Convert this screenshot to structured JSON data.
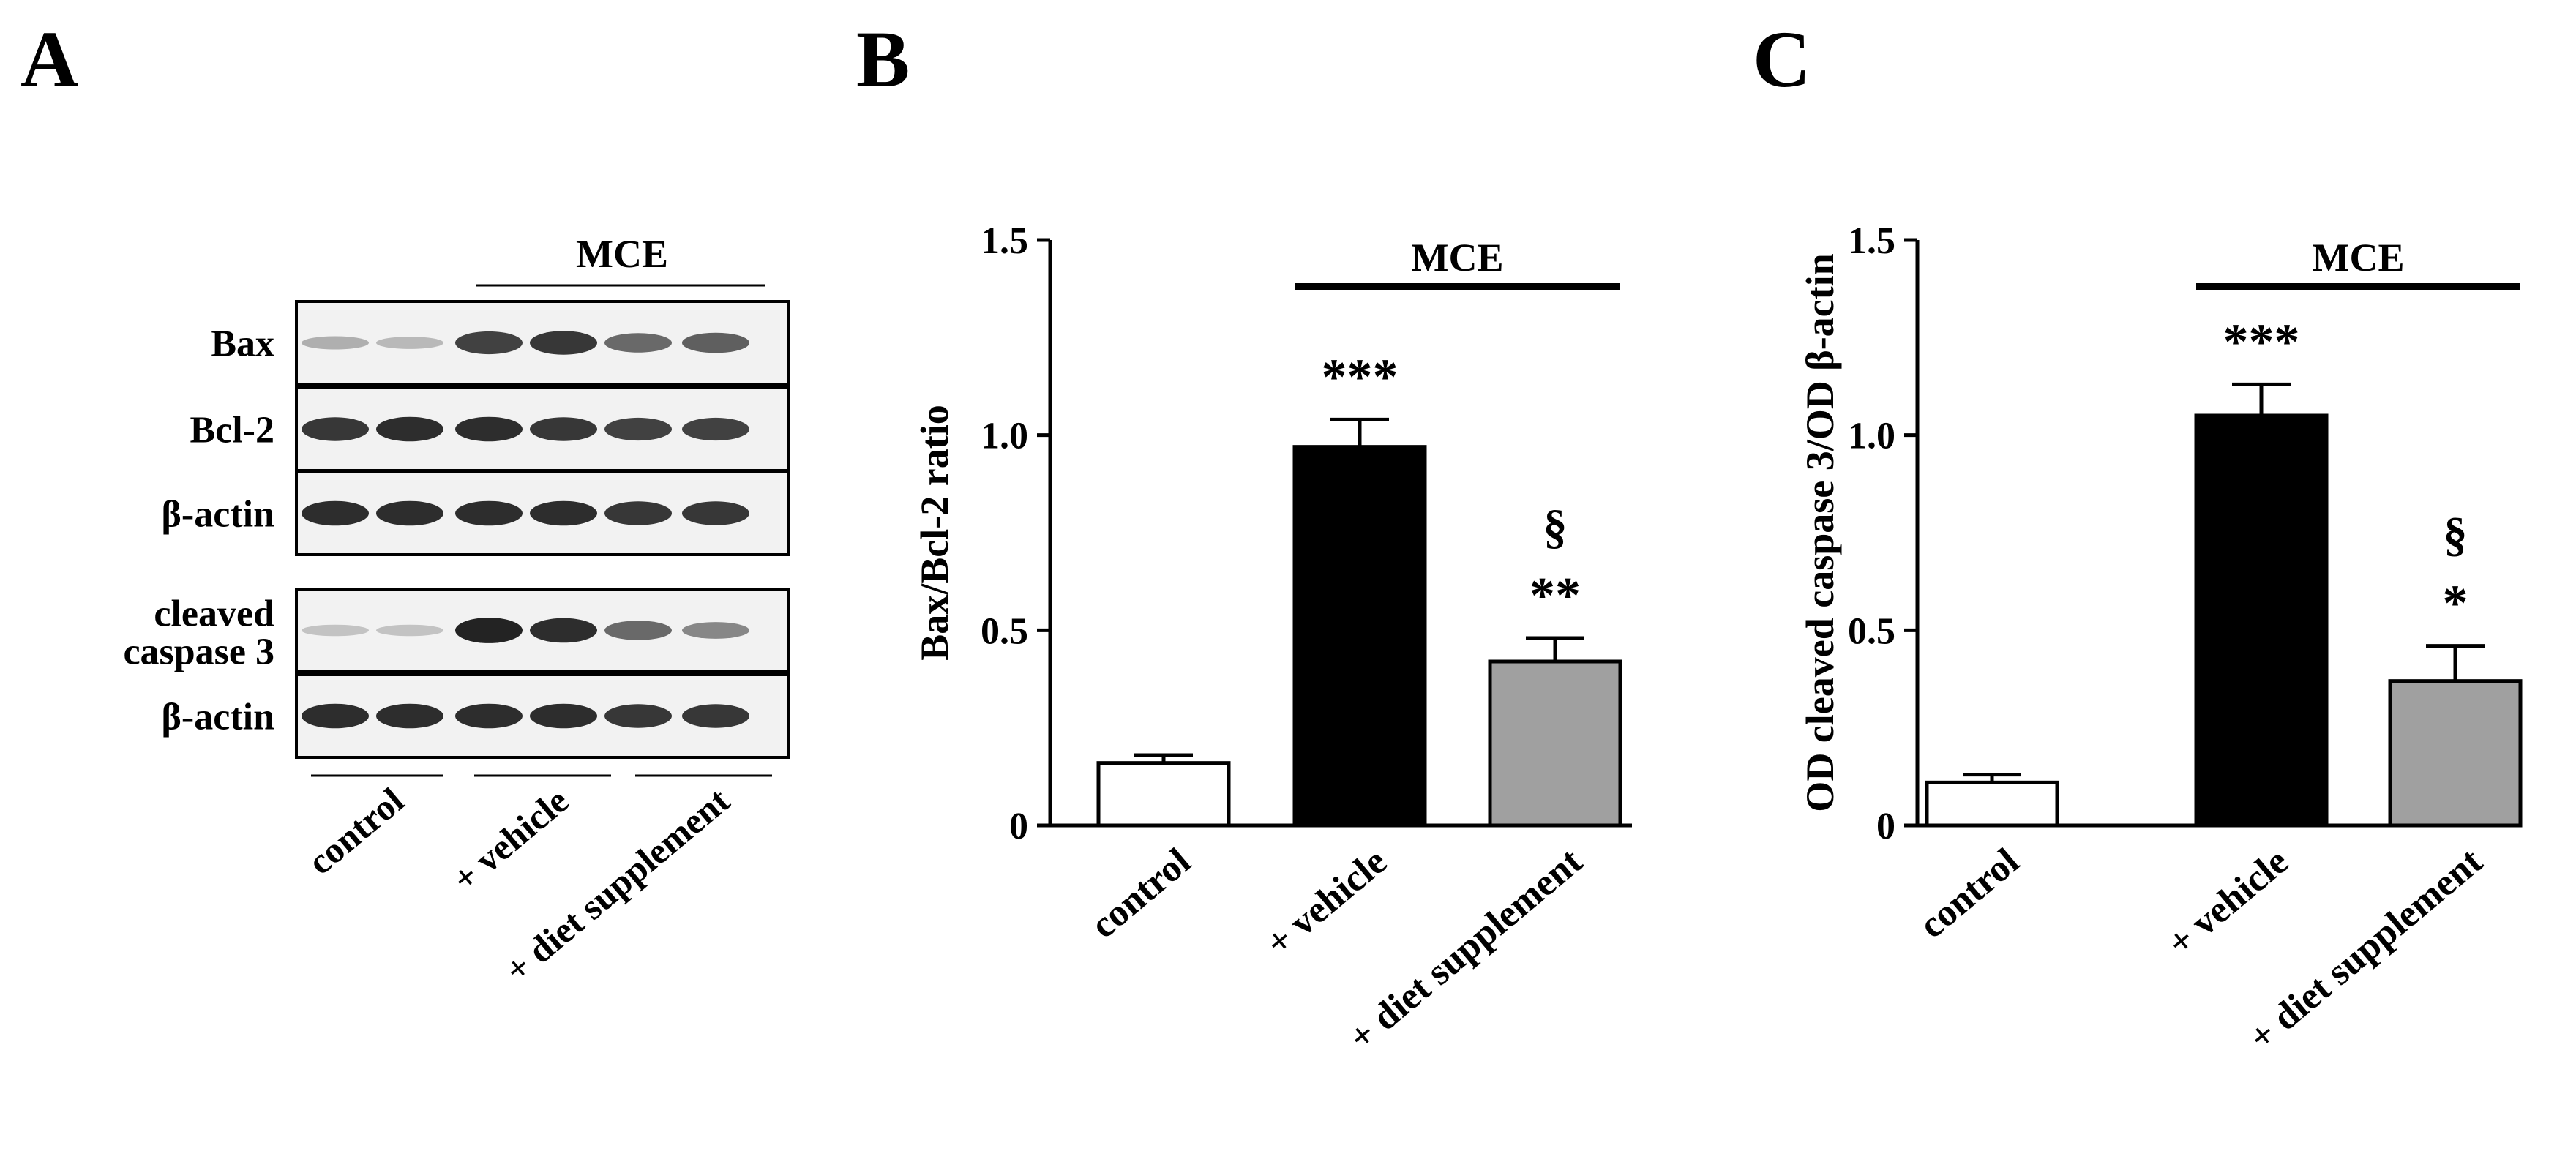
{
  "panels": {
    "a": {
      "letter": "A"
    },
    "b": {
      "letter": "B"
    },
    "c": {
      "letter": "C"
    }
  },
  "blot": {
    "group_label": "MCE",
    "rows": [
      {
        "label": "Bax",
        "intensities": [
          0.25,
          0.2,
          0.8,
          0.85,
          0.6,
          0.65
        ]
      },
      {
        "label": "Bcl-2",
        "intensities": [
          0.85,
          0.9,
          0.9,
          0.85,
          0.8,
          0.8
        ]
      },
      {
        "label": "β-actin",
        "intensities": [
          0.9,
          0.9,
          0.9,
          0.9,
          0.85,
          0.85
        ]
      },
      {
        "label": "cleaved caspase 3",
        "label_lines": [
          "cleaved",
          "caspase 3"
        ],
        "intensities": [
          0.15,
          0.15,
          0.95,
          0.9,
          0.6,
          0.45
        ]
      },
      {
        "label": "β-actin",
        "intensities": [
          0.9,
          0.9,
          0.9,
          0.9,
          0.85,
          0.85
        ]
      }
    ],
    "lane_groups": [
      "control",
      "+ vehicle",
      "+ diet supplement"
    ]
  },
  "chart_data": [
    {
      "type": "bar",
      "panel": "B",
      "categories": [
        "control",
        "+ vehicle",
        "+ diet supplement"
      ],
      "values": [
        0.16,
        0.97,
        0.42
      ],
      "errors": [
        0.02,
        0.07,
        0.06
      ],
      "bar_colors": [
        "#ffffff",
        "#000000",
        "#a0a0a0"
      ],
      "annotations": [
        [
          "",
          ""
        ],
        [
          "***",
          ""
        ],
        [
          "**",
          "§"
        ]
      ],
      "group_label": "MCE",
      "ylabel": "Bax/Bcl-2 ratio",
      "ylim": [
        0,
        1.5
      ],
      "yticks": [
        "0",
        "0.5",
        "1.0",
        "1.5"
      ]
    },
    {
      "type": "bar",
      "panel": "C",
      "categories": [
        "control",
        "+ vehicle",
        "+ diet supplement"
      ],
      "values": [
        0.11,
        1.05,
        0.37
      ],
      "errors": [
        0.02,
        0.08,
        0.09
      ],
      "bar_colors": [
        "#ffffff",
        "#000000",
        "#a0a0a0"
      ],
      "annotations": [
        [
          "",
          ""
        ],
        [
          "***",
          ""
        ],
        [
          "*",
          "§"
        ]
      ],
      "group_label": "MCE",
      "ylabel": "OD cleaved caspase 3/OD β-actin",
      "ylim": [
        0,
        1.5
      ],
      "yticks": [
        "0",
        "0.5",
        "1.0",
        "1.5"
      ]
    }
  ]
}
